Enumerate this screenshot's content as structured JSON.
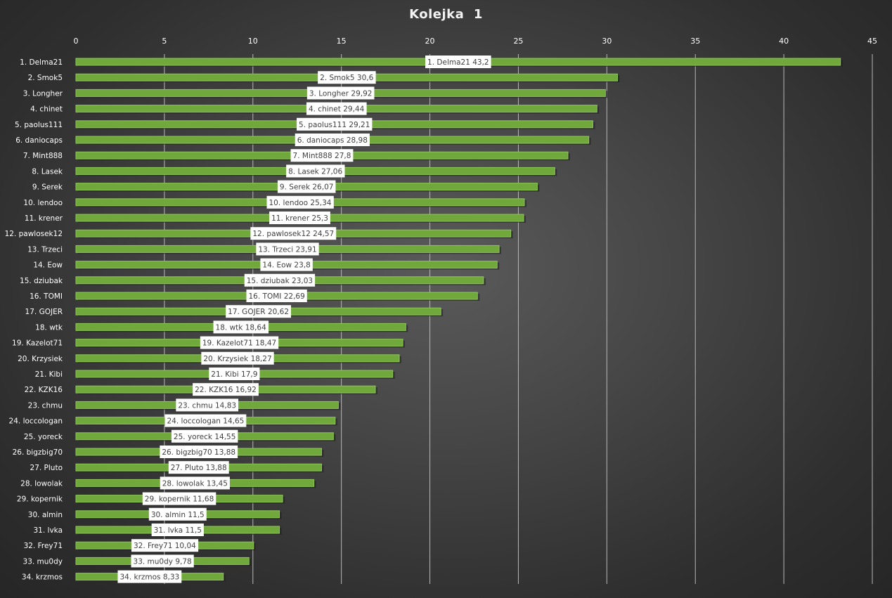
{
  "colors": {
    "bar": "#70a83c",
    "bar_edge": "#8cc657",
    "grid": "#b8b8b8",
    "text": "#ffffff",
    "label_bg": "#ffffff",
    "label_text": "#404040"
  },
  "chart_data": {
    "type": "bar",
    "orientation": "horizontal",
    "title": "Kolejka  1",
    "xlabel": "",
    "ylabel": "",
    "xlim": [
      0,
      45
    ],
    "xticks": [
      0,
      5,
      10,
      15,
      20,
      25,
      30,
      35,
      40,
      45
    ],
    "x_axis_position": "top",
    "grid": true,
    "legend": "none",
    "categories": [
      "1. Delma21",
      "2. Smok5",
      "3. Longher",
      "4. chinet",
      "5. paolus111",
      "6. daniocaps",
      "7. Mint888",
      "8. Lasek",
      "9. Serek",
      "10. lendoo",
      "11. krener",
      "12. pawlosek12",
      "13. Trzeci",
      "14. Eow",
      "15. dziubak",
      "16. TOMI",
      "17. GOJER",
      "18. wtk",
      "19. Kazelot71",
      "20. Krzysiek",
      "21. Kibi",
      "22. KZK16",
      "23. chmu",
      "24. loccologan",
      "25. yoreck",
      "26. bigzbig70",
      "27. Pluto",
      "28. lowolak",
      "29. kopernik",
      "30. almin",
      "31. lvka",
      "32. Frey71",
      "33. mu0dy",
      "34. krzmos"
    ],
    "values": [
      43.2,
      30.6,
      29.92,
      29.44,
      29.21,
      28.98,
      27.8,
      27.06,
      26.07,
      25.34,
      25.3,
      24.57,
      23.91,
      23.8,
      23.03,
      22.69,
      20.62,
      18.64,
      18.47,
      18.27,
      17.9,
      16.92,
      14.83,
      14.65,
      14.55,
      13.88,
      13.88,
      13.45,
      11.68,
      11.5,
      11.5,
      10.04,
      9.78,
      8.33
    ],
    "data_labels": [
      "1. Delma21 43,2",
      "2. Smok5 30,6",
      "3. Longher 29,92",
      "4. chinet 29,44",
      "5. paolus111 29,21",
      "6. daniocaps 28,98",
      "7. Mint888 27,8",
      "8. Lasek 27,06",
      "9. Serek 26,07",
      "10. lendoo 25,34",
      "11. krener 25,3",
      "12. pawlosek12 24,57",
      "13. Trzeci 23,91",
      "14. Eow 23,8",
      "15. dziubak 23,03",
      "16. TOMI 22,69",
      "17. GOJER 20,62",
      "18. wtk 18,64",
      "19. Kazelot71 18,47",
      "20. Krzysiek 18,27",
      "21. Kibi 17,9",
      "22. KZK16 16,92",
      "23. chmu 14,83",
      "24. loccologan 14,65",
      "25. yoreck 14,55",
      "26. bigzbig70 13,88",
      "27. Pluto 13,88",
      "28. lowolak 13,45",
      "29. kopernik 11,68",
      "30. almin 11,5",
      "31. lvka 11,5",
      "32. Frey71 10,04",
      "33. mu0dy 9,78",
      "34. krzmos 8,33"
    ]
  }
}
